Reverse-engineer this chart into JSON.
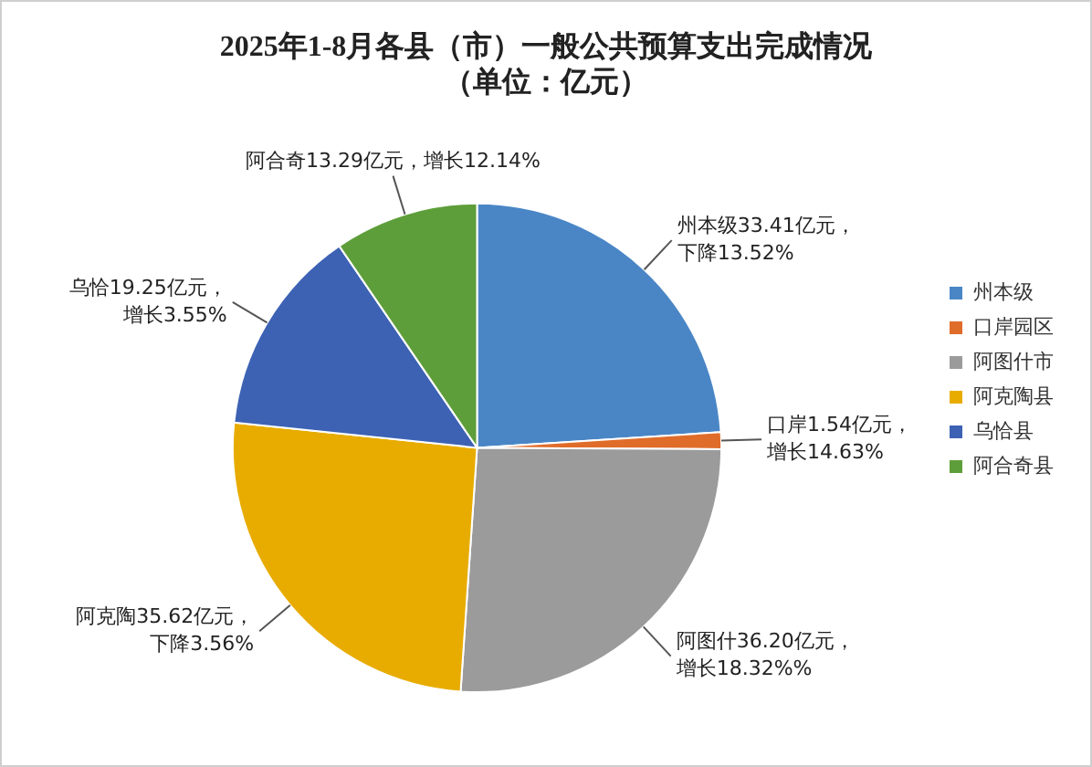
{
  "chart_data": {
    "type": "pie",
    "title": "2025年1-8月各县（市）一般公共预算支出完成情况",
    "subtitle": "（单位：亿元）",
    "categories": [
      "州本级",
      "口岸园区",
      "阿图什市",
      "阿克陶县",
      "乌恰县",
      "阿合奇县"
    ],
    "values": [
      33.41,
      1.54,
      36.2,
      35.62,
      19.25,
      13.29
    ],
    "colors": [
      "#4a86c6",
      "#e06c2a",
      "#9b9b9b",
      "#e8ac00",
      "#3d62b4",
      "#5e9e3a"
    ],
    "value_labels": [
      "州本级33.41亿元，下降13.52%",
      "口岸1.54亿元，增长14.63%",
      "阿图什36.20亿元，增长18.32%%",
      "阿克陶35.62亿元，下降3.56%",
      "乌恰19.25亿元，增长3.55%",
      "阿合奇13.29亿元，增长12.14%"
    ],
    "legend": "right"
  }
}
